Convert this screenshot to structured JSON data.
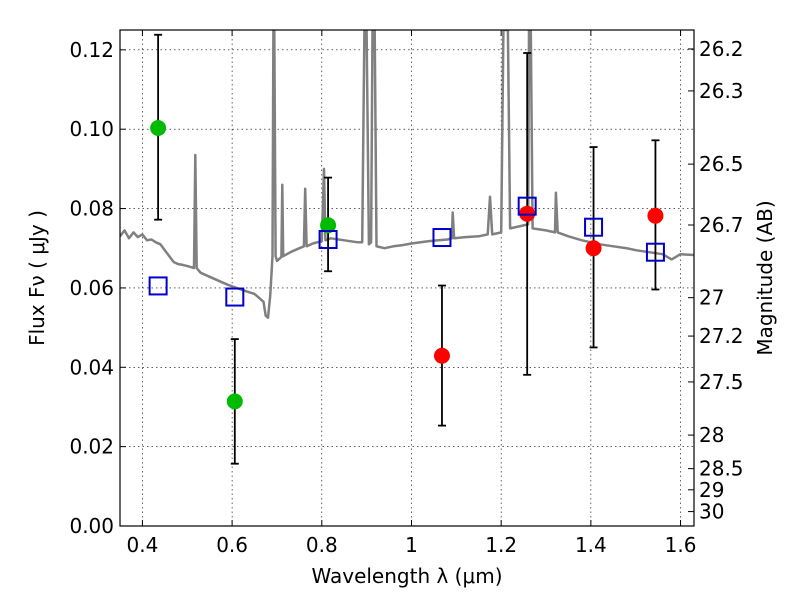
{
  "chart_data": {
    "type": "scatter",
    "xlabel": "Wavelength  λ (μm)",
    "ylabel": "Flux  Fν  ( μJy )",
    "ylabel_right": "Magnitude (AB)",
    "xlim": [
      0.35,
      1.63
    ],
    "ylim": [
      0.0,
      0.125
    ],
    "x_ticks": [
      0.4,
      0.6,
      0.8,
      1.0,
      1.2,
      1.4,
      1.6
    ],
    "x_tick_labels": [
      "0.4",
      "0.6",
      "0.8",
      "1",
      "1.2",
      "1.4",
      "1.6"
    ],
    "y_ticks": [
      0.0,
      0.02,
      0.04,
      0.06,
      0.08,
      0.1,
      0.12
    ],
    "y_tick_labels": [
      "0.00",
      "0.02",
      "0.04",
      "0.06",
      "0.08",
      "0.10",
      "0.12"
    ],
    "right_ticks": [
      26.2,
      26.3,
      26.5,
      26.7,
      27,
      27.2,
      27.5,
      28,
      28.5,
      29,
      30
    ],
    "right_tick_labels": [
      "26.2",
      "26.3",
      "26.5",
      "26.7",
      "27",
      "27.2",
      "27.5",
      "28",
      "28.5",
      "29",
      "30"
    ],
    "grid": true,
    "series": [
      {
        "marker": "circle",
        "color": "#00bb00",
        "points": [
          {
            "x": 0.435,
            "y": 0.1003,
            "ylow": 0.0772,
            "yhigh": 0.1238
          },
          {
            "x": 0.606,
            "y": 0.0314,
            "ylow": 0.0157,
            "yhigh": 0.0471
          },
          {
            "x": 0.814,
            "y": 0.0758,
            "ylow": 0.0642,
            "yhigh": 0.0878
          }
        ]
      },
      {
        "marker": "circle",
        "color": "#ff0000",
        "points": [
          {
            "x": 1.068,
            "y": 0.0429,
            "ylow": 0.0253,
            "yhigh": 0.0606
          },
          {
            "x": 1.258,
            "y": 0.0787,
            "ylow": 0.0381,
            "yhigh": 0.1192
          },
          {
            "x": 1.406,
            "y": 0.07,
            "ylow": 0.045,
            "yhigh": 0.0955
          },
          {
            "x": 1.544,
            "y": 0.0782,
            "ylow": 0.0596,
            "yhigh": 0.0972
          }
        ]
      },
      {
        "marker": "square",
        "color": "#0000cc",
        "points": [
          {
            "x": 0.435,
            "y": 0.0605
          },
          {
            "x": 0.606,
            "y": 0.0577
          },
          {
            "x": 0.814,
            "y": 0.0722
          },
          {
            "x": 1.068,
            "y": 0.0727
          },
          {
            "x": 1.258,
            "y": 0.0806
          },
          {
            "x": 1.406,
            "y": 0.0753
          },
          {
            "x": 1.544,
            "y": 0.069
          }
        ]
      }
    ],
    "model_curve": {
      "color": "#808080",
      "points": [
        [
          0.35,
          0.073
        ],
        [
          0.36,
          0.0745
        ],
        [
          0.37,
          0.0725
        ],
        [
          0.38,
          0.074
        ],
        [
          0.39,
          0.0728
        ],
        [
          0.4,
          0.0735
        ],
        [
          0.41,
          0.072
        ],
        [
          0.42,
          0.0722
        ],
        [
          0.43,
          0.0715
        ],
        [
          0.44,
          0.071
        ],
        [
          0.45,
          0.0695
        ],
        [
          0.46,
          0.068
        ],
        [
          0.47,
          0.0665
        ],
        [
          0.48,
          0.066
        ],
        [
          0.49,
          0.0658
        ],
        [
          0.5,
          0.0655
        ],
        [
          0.51,
          0.0652
        ],
        [
          0.515,
          0.065
        ],
        [
          0.518,
          0.0935
        ],
        [
          0.521,
          0.065
        ],
        [
          0.53,
          0.0638
        ],
        [
          0.55,
          0.0628
        ],
        [
          0.57,
          0.0618
        ],
        [
          0.59,
          0.0608
        ],
        [
          0.61,
          0.06
        ],
        [
          0.63,
          0.0592
        ],
        [
          0.65,
          0.0585
        ],
        [
          0.66,
          0.0575
        ],
        [
          0.67,
          0.0565
        ],
        [
          0.675,
          0.053
        ],
        [
          0.68,
          0.0525
        ],
        [
          0.685,
          0.058
        ],
        [
          0.69,
          0.068
        ],
        [
          0.692,
          0.125
        ],
        [
          0.694,
          0.125
        ],
        [
          0.697,
          0.068
        ],
        [
          0.7,
          0.0668
        ],
        [
          0.71,
          0.0678
        ],
        [
          0.712,
          0.086
        ],
        [
          0.714,
          0.068
        ],
        [
          0.73,
          0.069
        ],
        [
          0.75,
          0.07
        ],
        [
          0.76,
          0.0705
        ],
        [
          0.763,
          0.085
        ],
        [
          0.766,
          0.0705
        ],
        [
          0.78,
          0.0712
        ],
        [
          0.8,
          0.0718
        ],
        [
          0.805,
          0.09
        ],
        [
          0.808,
          0.072
        ],
        [
          0.82,
          0.0725
        ],
        [
          0.85,
          0.072
        ],
        [
          0.88,
          0.0715
        ],
        [
          0.89,
          0.0715
        ],
        [
          0.895,
          0.125
        ],
        [
          0.9,
          0.125
        ],
        [
          0.905,
          0.071
        ],
        [
          0.91,
          0.0715
        ],
        [
          0.913,
          0.125
        ],
        [
          0.918,
          0.125
        ],
        [
          0.922,
          0.0705
        ],
        [
          0.94,
          0.07
        ],
        [
          0.96,
          0.0705
        ],
        [
          0.98,
          0.0708
        ],
        [
          1.0,
          0.0712
        ],
        [
          1.02,
          0.0715
        ],
        [
          1.04,
          0.0718
        ],
        [
          1.06,
          0.072
        ],
        [
          1.08,
          0.0722
        ],
        [
          1.09,
          0.0725
        ],
        [
          1.092,
          0.079
        ],
        [
          1.095,
          0.0725
        ],
        [
          1.12,
          0.0728
        ],
        [
          1.15,
          0.073
        ],
        [
          1.17,
          0.0735
        ],
        [
          1.175,
          0.083
        ],
        [
          1.18,
          0.0735
        ],
        [
          1.2,
          0.074
        ],
        [
          1.205,
          0.125
        ],
        [
          1.215,
          0.125
        ],
        [
          1.22,
          0.075
        ],
        [
          1.24,
          0.0755
        ],
        [
          1.26,
          0.076
        ],
        [
          1.262,
          0.125
        ],
        [
          1.266,
          0.125
        ],
        [
          1.27,
          0.075
        ],
        [
          1.3,
          0.0745
        ],
        [
          1.32,
          0.074
        ],
        [
          1.322,
          0.084
        ],
        [
          1.326,
          0.074
        ],
        [
          1.35,
          0.073
        ],
        [
          1.38,
          0.072
        ],
        [
          1.4,
          0.0715
        ],
        [
          1.42,
          0.071
        ],
        [
          1.45,
          0.0705
        ],
        [
          1.48,
          0.07
        ],
        [
          1.5,
          0.0695
        ],
        [
          1.53,
          0.069
        ],
        [
          1.56,
          0.0685
        ],
        [
          1.58,
          0.0672
        ],
        [
          1.6,
          0.0685
        ],
        [
          1.63,
          0.0683
        ]
      ]
    }
  }
}
